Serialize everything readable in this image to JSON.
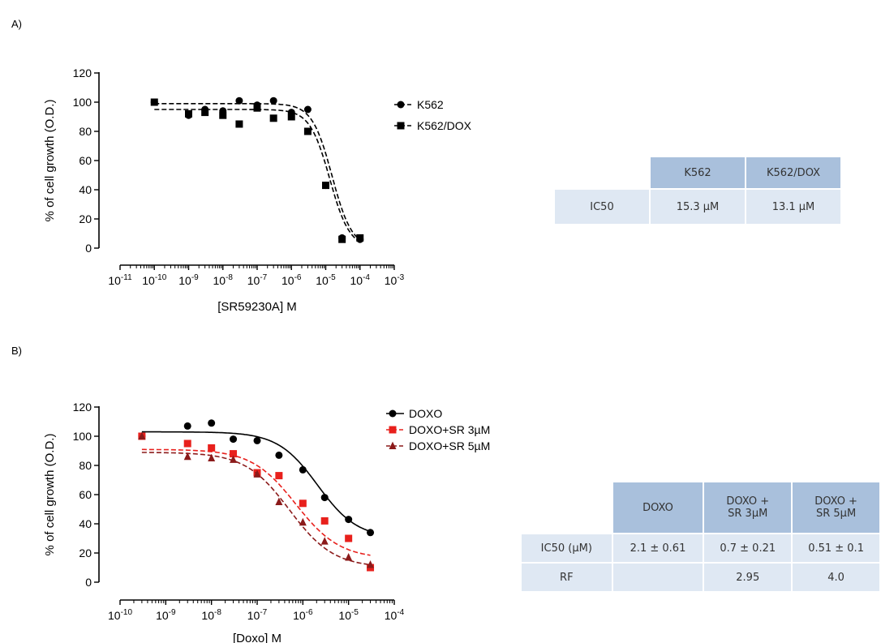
{
  "panel_a_label": "A)",
  "panel_b_label": "B)",
  "chart_data": [
    {
      "type": "scatter",
      "xscale": "log",
      "xlabel": "[SR59230A] M",
      "ylabel": "% of cell growth (O.D.)",
      "ylim": [
        0,
        120
      ],
      "yticks": [
        0,
        20,
        40,
        60,
        80,
        100,
        120
      ],
      "xlim_exp": [
        -11,
        -3
      ],
      "xtick_labels": [
        "10-11",
        "10-10",
        "10-9",
        "10-8",
        "10-7",
        "10-6",
        "10-5",
        "10-4",
        "10-3"
      ],
      "legend_position": "top-right",
      "series": [
        {
          "name": "K562",
          "marker": "circle",
          "line": "dashed",
          "color": "#000000",
          "x": [
            1e-10,
            1e-09,
            3e-09,
            1e-08,
            3e-08,
            1e-07,
            3e-07,
            1e-06,
            3e-06,
            1e-05,
            3e-05,
            0.0001
          ],
          "y": [
            100,
            91,
            95,
            94,
            101,
            98,
            101,
            93,
            95,
            43,
            7,
            6
          ],
          "fit": {
            "top": 99,
            "bottom": 0,
            "ic50": 1.53e-05,
            "hill": 1.5
          }
        },
        {
          "name": "K562/DOX",
          "marker": "square",
          "line": "dashed",
          "color": "#000000",
          "x": [
            1e-10,
            1e-09,
            3e-09,
            1e-08,
            3e-08,
            1e-07,
            3e-07,
            1e-06,
            3e-06,
            1e-05,
            3e-05,
            0.0001
          ],
          "y": [
            100,
            92,
            93,
            91,
            85,
            96,
            89,
            90,
            80,
            43,
            6,
            7
          ],
          "fit": {
            "top": 95,
            "bottom": 0,
            "ic50": 1.31e-05,
            "hill": 1.5
          }
        }
      ]
    },
    {
      "type": "scatter",
      "xscale": "log",
      "xlabel": "[Doxo] M",
      "ylabel": "% of cell growth (O.D.)",
      "ylim": [
        0,
        120
      ],
      "yticks": [
        0,
        20,
        40,
        60,
        80,
        100,
        120
      ],
      "xlim_exp": [
        -10,
        -4
      ],
      "xtick_labels": [
        "10-10",
        "10-9",
        "10-8",
        "10-7",
        "10-6",
        "10-5",
        "10-4"
      ],
      "legend_position": "top-right",
      "series": [
        {
          "name": "DOXO",
          "marker": "circle",
          "line": "solid",
          "color": "#000000",
          "x": [
            3e-10,
            3e-09,
            1e-08,
            3e-08,
            1e-07,
            3e-07,
            1e-06,
            3e-06,
            1e-05,
            3e-05
          ],
          "y": [
            100,
            107,
            109,
            98,
            97,
            87,
            77,
            58,
            43,
            34
          ],
          "fit": {
            "top": 103,
            "bottom": 30,
            "ic50": 2.1e-06,
            "hill": 1.0
          }
        },
        {
          "name": "DOXO+SR 3µM",
          "marker": "square",
          "line": "dashed",
          "color": "#e8201c",
          "x": [
            3e-10,
            3e-09,
            1e-08,
            3e-08,
            1e-07,
            3e-07,
            1e-06,
            3e-06,
            1e-05,
            3e-05
          ],
          "y": [
            100,
            95,
            92,
            88,
            75,
            73,
            54,
            42,
            30,
            10
          ],
          "fit": {
            "top": 91,
            "bottom": 16,
            "ic50": 7e-07,
            "hill": 0.9
          }
        },
        {
          "name": "DOXO+SR  5µM",
          "marker": "triangle",
          "line": "dashed",
          "color": "#8b1a1a",
          "x": [
            3e-10,
            3e-09,
            1e-08,
            3e-08,
            1e-07,
            3e-07,
            1e-06,
            3e-06,
            1e-05,
            3e-05
          ],
          "y": [
            100,
            86,
            85,
            84,
            74,
            55,
            41,
            28,
            17,
            12
          ],
          "fit": {
            "top": 89,
            "bottom": 10,
            "ic50": 5.1e-07,
            "hill": 0.9
          }
        }
      ]
    }
  ],
  "table_a": {
    "headers": [
      "",
      "K562",
      "K562/DOX"
    ],
    "rows": [
      [
        "IC50",
        "15.3 µM",
        "13.1 µM"
      ]
    ]
  },
  "table_b": {
    "headers": [
      "",
      "DOXO",
      "DOXO +\nSR 3µM",
      "DOXO +\nSR 5µM"
    ],
    "rows": [
      [
        "IC50 (µM)",
        "2.1 ± 0.61",
        "0.7 ± 0.21",
        "0.51 ± 0.1"
      ],
      [
        "RF",
        "",
        "2.95",
        "4.0"
      ]
    ]
  }
}
